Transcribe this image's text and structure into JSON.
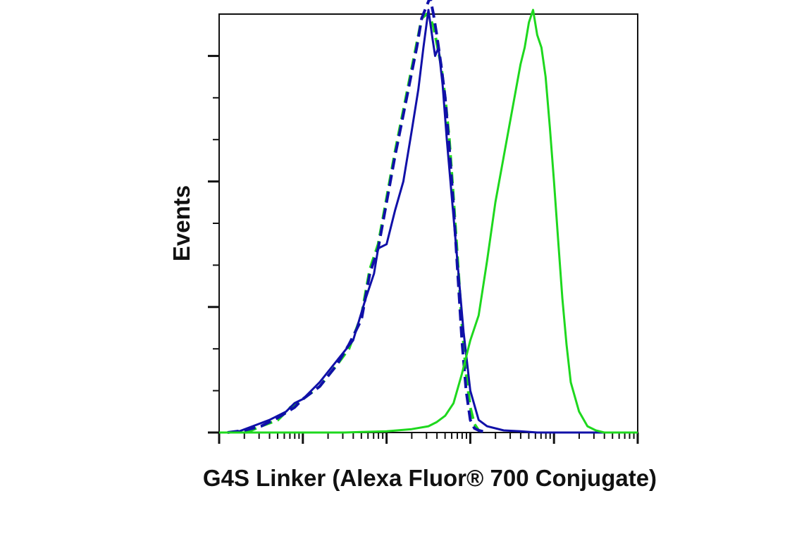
{
  "chart_data": {
    "type": "line",
    "xlabel": "G4S Linker (Alexa Fluor® 700 Conjugate)",
    "ylabel": "Events",
    "x_scale": "log",
    "xlim": [
      0.0,
      5.0
    ],
    "ylim": [
      0,
      100
    ],
    "grid": false,
    "legend": "none",
    "y_major_ticks": [
      0,
      30,
      60,
      90
    ],
    "y_minor_ticks": [
      10,
      20,
      40,
      50,
      70,
      80
    ],
    "x_major_decades": [
      0,
      1,
      2,
      3,
      4,
      5
    ],
    "series": [
      {
        "color": "#1ed81e",
        "dash": "dashed",
        "x": [
          0.32,
          0.5,
          0.7,
          0.85,
          1.0,
          1.2,
          1.4,
          1.55,
          1.7,
          1.8,
          1.9,
          2.0,
          2.1,
          2.2,
          2.28,
          2.36,
          2.42,
          2.48,
          2.52,
          2.56,
          2.6,
          2.65,
          2.7,
          2.75,
          2.8,
          2.85,
          2.9,
          2.95,
          3.0,
          3.05,
          3.1,
          3.2
        ],
        "values": [
          0,
          1.5,
          3,
          6,
          8,
          11,
          16,
          20,
          28,
          39,
          45,
          56,
          67,
          77,
          85,
          93,
          99,
          100,
          99,
          97,
          93,
          88,
          80,
          70,
          56,
          41,
          26,
          14,
          6,
          2,
          0.5,
          0
        ]
      },
      {
        "color": "#1010a8",
        "dash": "dashed",
        "x": [
          0.1,
          0.3,
          0.5,
          0.7,
          0.9,
          1.0,
          1.2,
          1.4,
          1.55,
          1.7,
          1.8,
          1.9,
          2.0,
          2.1,
          2.2,
          2.28,
          2.36,
          2.42,
          2.48,
          2.52,
          2.56,
          2.6,
          2.65,
          2.7,
          2.75,
          2.8,
          2.85,
          2.9,
          2.95,
          3.0,
          3.05,
          3.1,
          3.2
        ],
        "values": [
          0,
          0.5,
          1.5,
          3.5,
          6,
          8,
          11,
          16,
          21,
          27,
          38,
          44,
          55,
          66,
          76,
          84,
          92,
          99,
          102,
          104,
          100,
          95,
          88,
          80,
          68,
          54,
          38,
          22,
          10,
          3,
          1,
          0.5,
          0
        ]
      },
      {
        "color": "#1010a8",
        "dash": "solid",
        "x": [
          0.0,
          0.2,
          0.4,
          0.6,
          0.8,
          0.9,
          1.0,
          1.2,
          1.4,
          1.6,
          1.75,
          1.85,
          1.9,
          2.0,
          2.1,
          2.2,
          2.3,
          2.38,
          2.44,
          2.5,
          2.55,
          2.58,
          2.62,
          2.67,
          2.72,
          2.78,
          2.85,
          2.92,
          3.0,
          3.1,
          3.2,
          3.4,
          3.6,
          3.8,
          4.0,
          5.0
        ],
        "values": [
          0,
          0,
          1.5,
          3,
          5,
          7,
          8,
          12,
          17,
          22,
          32,
          38,
          44,
          45,
          53,
          60,
          72,
          82,
          92,
          101,
          94,
          90,
          92,
          83,
          70,
          56,
          40,
          24,
          10,
          3,
          1.5,
          0.5,
          0.3,
          0,
          0,
          0
        ]
      },
      {
        "color": "#1ed81e",
        "dash": "solid",
        "x": [
          0.0,
          0.5,
          1.0,
          1.5,
          2.0,
          2.3,
          2.5,
          2.6,
          2.7,
          2.8,
          2.9,
          3.0,
          3.1,
          3.2,
          3.3,
          3.4,
          3.5,
          3.6,
          3.65,
          3.7,
          3.75,
          3.8,
          3.85,
          3.9,
          3.95,
          4.0,
          4.05,
          4.1,
          4.15,
          4.2,
          4.3,
          4.4,
          4.5,
          4.6,
          4.8,
          5.0
        ],
        "values": [
          0,
          0,
          0,
          0,
          0.3,
          0.8,
          1.5,
          2.5,
          4,
          7,
          14,
          22,
          28,
          41,
          55,
          66,
          77,
          88,
          92,
          98,
          101,
          95,
          92,
          85,
          73,
          60,
          46,
          32,
          21,
          12,
          5,
          1.5,
          0.5,
          0,
          0,
          0
        ]
      }
    ]
  }
}
